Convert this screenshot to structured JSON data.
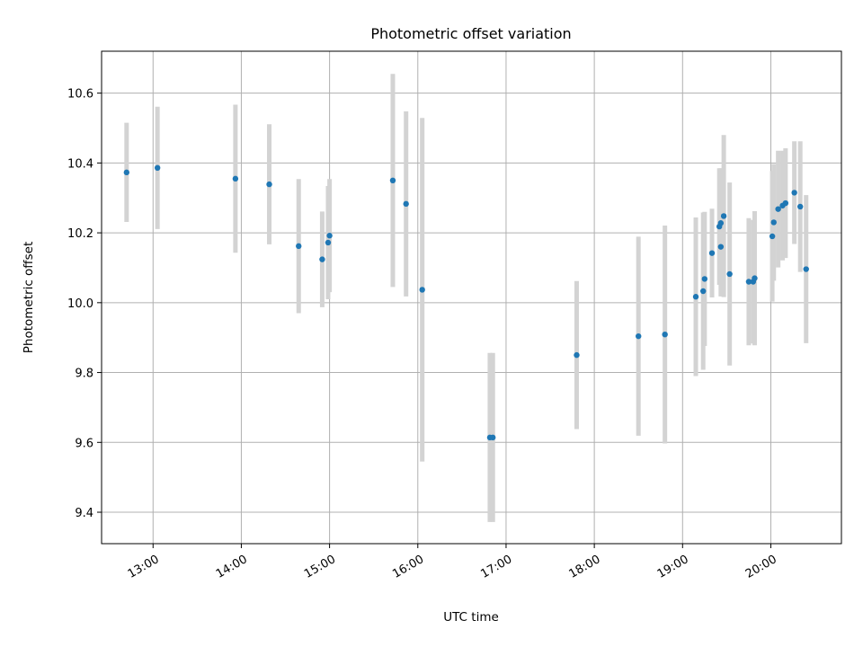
{
  "chart_data": {
    "type": "scatter",
    "title": "Photometric offset variation",
    "xlabel": "UTC time",
    "ylabel": "Photometric offset",
    "xlim": [
      "12:25",
      "20:48"
    ],
    "ylim": [
      9.31,
      10.72
    ],
    "x_ticks": [
      "13:00",
      "14:00",
      "15:00",
      "16:00",
      "17:00",
      "18:00",
      "19:00",
      "20:00"
    ],
    "y_ticks": [
      9.4,
      9.6,
      9.8,
      10.0,
      10.2,
      10.4,
      10.6
    ],
    "grid": true,
    "legend": "none",
    "colors": {
      "points": "#1f77b4",
      "errorbars": "#d3d3d3",
      "grid": "#b0b0b0"
    },
    "points": [
      {
        "x": "12:42",
        "y": 10.373,
        "yerr": 0.142
      },
      {
        "x": "13:03",
        "y": 10.386,
        "yerr": 0.175
      },
      {
        "x": "13:56",
        "y": 10.355,
        "yerr": 0.212
      },
      {
        "x": "14:19",
        "y": 10.339,
        "yerr": 0.172
      },
      {
        "x": "14:39",
        "y": 10.162,
        "yerr": 0.192
      },
      {
        "x": "14:55",
        "y": 10.124,
        "yerr": 0.137
      },
      {
        "x": "14:59",
        "y": 10.172,
        "yerr": 0.162
      },
      {
        "x": "15:00",
        "y": 10.192,
        "yerr": 0.162
      },
      {
        "x": "15:43",
        "y": 10.35,
        "yerr": 0.305
      },
      {
        "x": "15:52",
        "y": 10.283,
        "yerr": 0.265
      },
      {
        "x": "16:03",
        "y": 10.037,
        "yerr": 0.492
      },
      {
        "x": "16:49",
        "y": 9.614,
        "yerr": 0.242
      },
      {
        "x": "16:51",
        "y": 9.614,
        "yerr": 0.242
      },
      {
        "x": "17:48",
        "y": 9.85,
        "yerr": 0.212
      },
      {
        "x": "18:30",
        "y": 9.904,
        "yerr": 0.285
      },
      {
        "x": "18:48",
        "y": 9.909,
        "yerr": 0.312
      },
      {
        "x": "19:09",
        "y": 10.017,
        "yerr": 0.227
      },
      {
        "x": "19:14",
        "y": 10.033,
        "yerr": 0.225
      },
      {
        "x": "19:15",
        "y": 10.068,
        "yerr": 0.192
      },
      {
        "x": "19:20",
        "y": 10.142,
        "yerr": 0.127
      },
      {
        "x": "19:25",
        "y": 10.218,
        "yerr": 0.167
      },
      {
        "x": "19:26",
        "y": 10.228,
        "yerr": 0.157
      },
      {
        "x": "19:26",
        "y": 10.16,
        "yerr": 0.142
      },
      {
        "x": "19:28",
        "y": 10.248,
        "yerr": 0.232
      },
      {
        "x": "19:32",
        "y": 10.082,
        "yerr": 0.262
      },
      {
        "x": "19:45",
        "y": 10.06,
        "yerr": 0.182
      },
      {
        "x": "19:48",
        "y": 10.06,
        "yerr": 0.177
      },
      {
        "x": "19:49",
        "y": 10.07,
        "yerr": 0.192
      },
      {
        "x": "20:01",
        "y": 10.19,
        "yerr": 0.187
      },
      {
        "x": "20:02",
        "y": 10.23,
        "yerr": 0.167
      },
      {
        "x": "20:05",
        "y": 10.268,
        "yerr": 0.167
      },
      {
        "x": "20:08",
        "y": 10.278,
        "yerr": 0.157
      },
      {
        "x": "20:10",
        "y": 10.285,
        "yerr": 0.157
      },
      {
        "x": "20:16",
        "y": 10.315,
        "yerr": 0.147
      },
      {
        "x": "20:20",
        "y": 10.275,
        "yerr": 0.187
      },
      {
        "x": "20:24",
        "y": 10.096,
        "yerr": 0.212
      }
    ]
  }
}
